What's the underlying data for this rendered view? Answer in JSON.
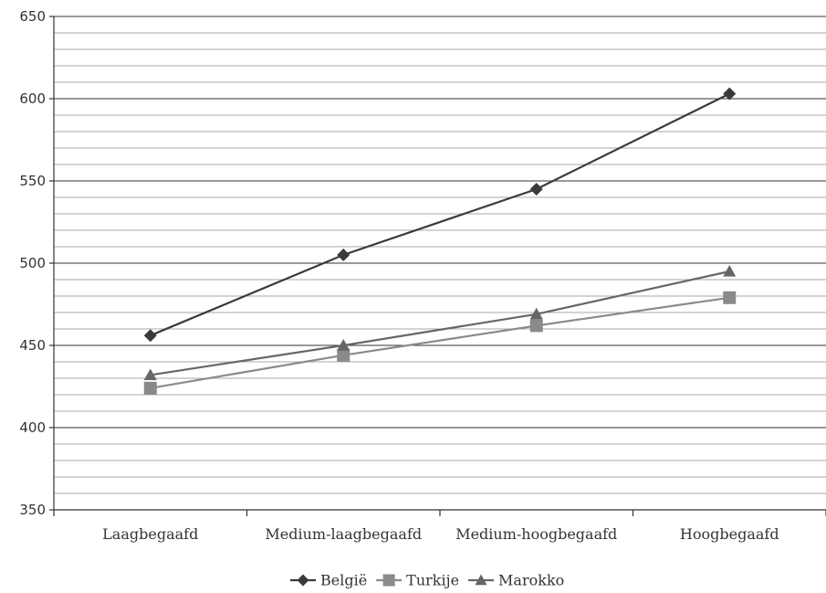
{
  "chart_data": {
    "type": "line",
    "title": "",
    "xlabel": "",
    "ylabel": "",
    "categories": [
      "Laagbegaafd",
      "Medium-laagbegaafd",
      "Medium-hoogbegaafd",
      "Hoogbegaafd"
    ],
    "ylim": [
      350,
      650
    ],
    "yticks": [
      350,
      400,
      450,
      500,
      550,
      600,
      650
    ],
    "ytick_labels": [
      "350",
      "400",
      "450",
      "500",
      "550",
      "600",
      "650"
    ],
    "minor_grid_step": 10,
    "grid": true,
    "legend_position": "bottom",
    "series": [
      {
        "name": "België",
        "marker": "diamond",
        "color": "#3a3a3a",
        "values": [
          456,
          505,
          545,
          603
        ]
      },
      {
        "name": "Turkije",
        "marker": "square",
        "color": "#8a8a8a",
        "values": [
          424,
          444,
          462,
          479
        ]
      },
      {
        "name": "Marokko",
        "marker": "triangle",
        "color": "#666666",
        "values": [
          432,
          450,
          469,
          495
        ]
      }
    ]
  }
}
